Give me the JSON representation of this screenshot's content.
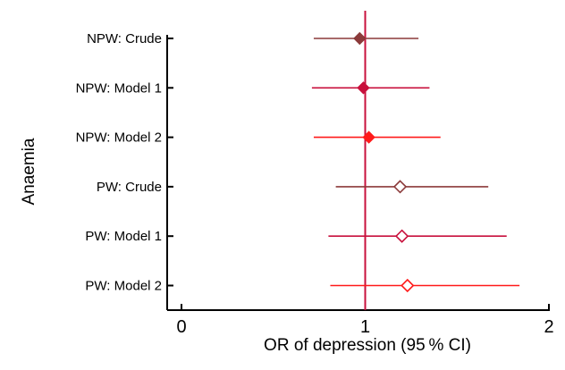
{
  "chart_data": {
    "type": "scatter",
    "subtype": "forest-plot",
    "title": "",
    "xlabel": "OR of depression (95 % CI)",
    "ylabel": "Anaemia",
    "xlim": [
      0,
      2
    ],
    "xticks": [
      "0",
      "1",
      "2"
    ],
    "reference_line": 1,
    "grid": false,
    "legend": "none",
    "rows": [
      {
        "label": "NPW: Crude",
        "or": 0.97,
        "ci_low": 0.72,
        "ci_high": 1.29,
        "marker": "filled-diamond",
        "color": "#8b3a3a"
      },
      {
        "label": "NPW: Model 1",
        "or": 0.99,
        "ci_low": 0.71,
        "ci_high": 1.35,
        "marker": "filled-diamond",
        "color": "#c8103c"
      },
      {
        "label": "NPW: Model 2",
        "or": 1.02,
        "ci_low": 0.72,
        "ci_high": 1.41,
        "marker": "filled-diamond",
        "color": "#ff1a1a"
      },
      {
        "label": "PW: Crude",
        "or": 1.19,
        "ci_low": 0.84,
        "ci_high": 1.67,
        "marker": "open-diamond",
        "color": "#8b3a3a"
      },
      {
        "label": "PW: Model 1",
        "or": 1.2,
        "ci_low": 0.8,
        "ci_high": 1.77,
        "marker": "open-diamond",
        "color": "#c8103c"
      },
      {
        "label": "PW: Model 2",
        "or": 1.23,
        "ci_low": 0.81,
        "ci_high": 1.84,
        "marker": "open-diamond",
        "color": "#ff1a1a"
      }
    ],
    "reference_line_color": "#c8103c",
    "axis_color": "#000000"
  }
}
